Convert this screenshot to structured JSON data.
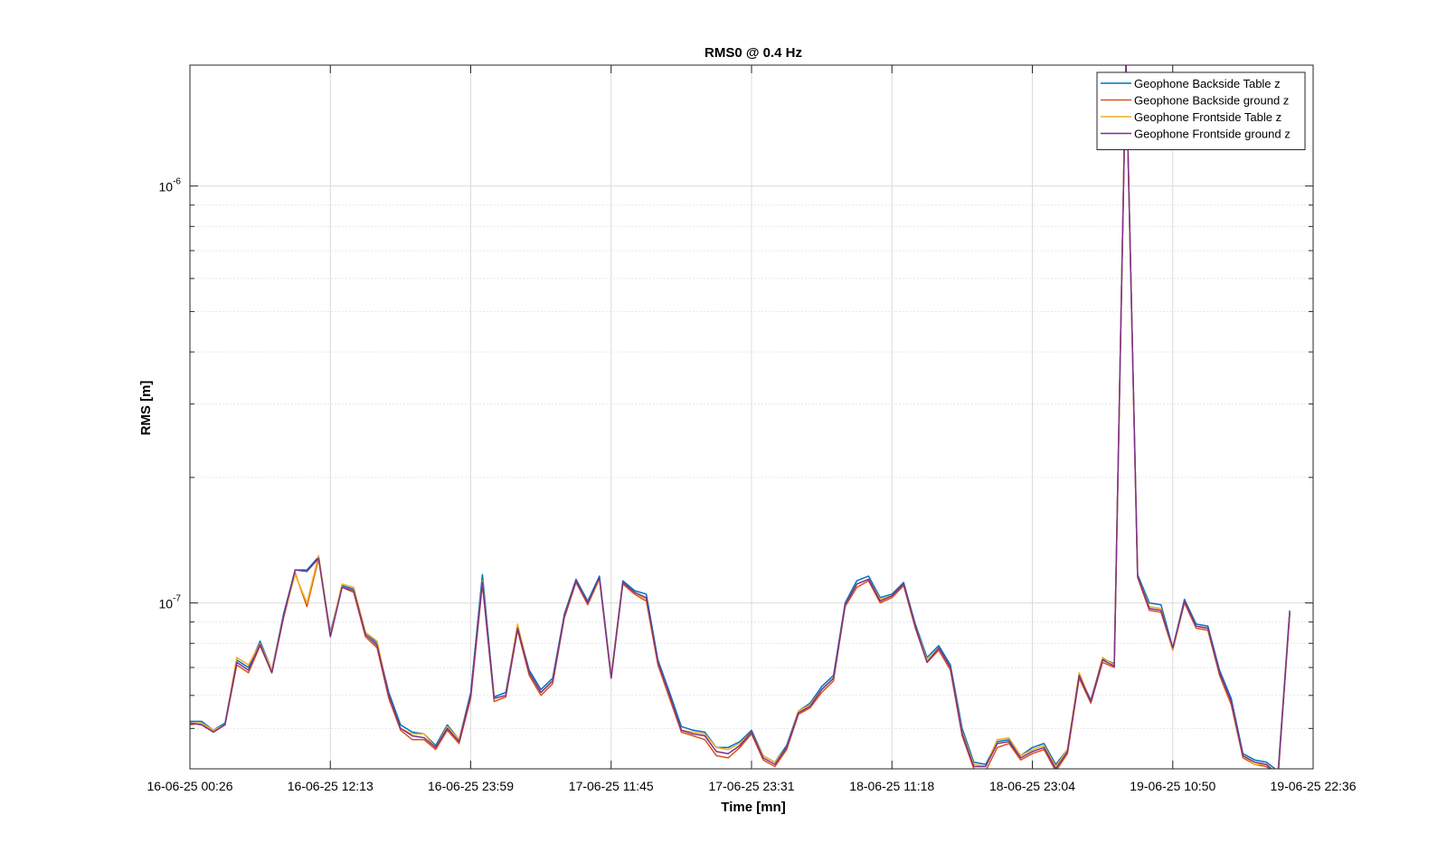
{
  "chart_data": {
    "type": "line",
    "title": "RMS0 @ 0.4 Hz",
    "xlabel": "Time [mn]",
    "ylabel": "RMS [m]",
    "yscale": "log",
    "ylim": [
      4e-08,
      1.95e-06
    ],
    "y_ticks": [
      1e-07,
      1e-06
    ],
    "y_tick_labels": [
      {
        "base": "10",
        "exp": "-7"
      },
      {
        "base": "10",
        "exp": "-6"
      }
    ],
    "x_tick_labels": [
      "16-06-25 00:26",
      "16-06-25 12:13",
      "16-06-25 23:59",
      "17-06-25 11:45",
      "17-06-25 23:31",
      "18-06-25 11:18",
      "18-06-25 23:04",
      "19-06-25 10:50",
      "19-06-25 22:36"
    ],
    "grid": true,
    "legend_position": "top-right",
    "x_index": [
      0,
      1,
      2,
      3,
      4,
      5,
      6,
      7,
      8,
      9,
      10,
      11,
      12,
      13,
      14,
      15,
      16,
      17,
      18,
      19,
      20,
      21,
      22,
      23,
      24,
      25,
      26,
      27,
      28,
      29,
      30,
      31,
      32,
      33,
      34,
      35,
      36,
      37,
      38,
      39,
      40,
      41,
      42,
      43,
      44,
      45,
      46,
      47,
      48,
      49,
      50,
      51,
      52,
      53,
      54,
      55,
      56,
      57,
      58,
      59,
      60,
      61,
      62,
      63,
      64,
      65,
      66,
      67,
      68,
      69,
      70,
      71,
      72,
      73,
      74,
      75,
      76,
      77,
      78,
      79,
      80,
      81,
      82,
      83,
      84,
      85,
      86,
      87,
      88,
      89,
      90,
      91,
      92,
      93,
      94,
      95,
      96
    ],
    "series": [
      {
        "name": "Geophone Backside Table z",
        "color": "#0072BD",
        "values": [
          5.2e-08,
          5.2e-08,
          4.95e-08,
          5.15e-08,
          7.3e-08,
          7e-08,
          8.1e-08,
          6.9e-08,
          9.4e-08,
          1.2e-07,
          1.2e-07,
          1.29e-07,
          8.5e-08,
          1.1e-07,
          1.08e-07,
          8.5e-08,
          8e-08,
          6.1e-08,
          5.1e-08,
          4.9e-08,
          4.85e-08,
          4.55e-08,
          5.1e-08,
          4.7e-08,
          6.1e-08,
          1.17e-07,
          5.95e-08,
          6.1e-08,
          8.8e-08,
          6.9e-08,
          6.2e-08,
          6.6e-08,
          9.4e-08,
          1.14e-07,
          1.01e-07,
          1.16e-07,
          6.7e-08,
          1.13e-07,
          1.07e-07,
          1.05e-07,
          7.3e-08,
          6.1e-08,
          5.05e-08,
          4.95e-08,
          4.9e-08,
          4.5e-08,
          4.5e-08,
          4.65e-08,
          4.95e-08,
          4.3e-08,
          4.15e-08,
          4.55e-08,
          5.5e-08,
          5.75e-08,
          6.3e-08,
          6.7e-08,
          1e-07,
          1.13e-07,
          1.16e-07,
          1.03e-07,
          1.05e-07,
          1.12e-07,
          8.9e-08,
          7.4e-08,
          7.9e-08,
          7.1e-08,
          5e-08,
          4.15e-08,
          4.1e-08,
          4.65e-08,
          4.7e-08,
          4.3e-08,
          4.5e-08,
          4.6e-08,
          4.1e-08,
          4.45e-08,
          6.7e-08,
          5.85e-08,
          7.35e-08,
          7.15e-08,
          2e-06,
          1.17e-07,
          1e-07,
          9.9e-08,
          7.8e-08,
          1.02e-07,
          8.9e-08,
          8.8e-08,
          6.9e-08,
          5.9e-08,
          4.35e-08,
          4.2e-08,
          4.15e-08,
          3.95e-08,
          9.6e-08
        ]
      },
      {
        "name": "Geophone Backside ground z",
        "color": "#D95319",
        "values": [
          5.1e-08,
          5.15e-08,
          4.9e-08,
          5.1e-08,
          7.1e-08,
          6.8e-08,
          7.9e-08,
          6.8e-08,
          9.2e-08,
          1.18e-07,
          9.8e-08,
          1.28e-07,
          8.3e-08,
          1.09e-07,
          1.06e-07,
          8.3e-08,
          7.8e-08,
          5.9e-08,
          4.95e-08,
          4.7e-08,
          4.7e-08,
          4.45e-08,
          4.95e-08,
          4.6e-08,
          5.9e-08,
          1.11e-07,
          5.8e-08,
          5.95e-08,
          8.6e-08,
          6.7e-08,
          6e-08,
          6.4e-08,
          9.2e-08,
          1.12e-07,
          9.9e-08,
          1.14e-07,
          6.6e-08,
          1.11e-07,
          1.05e-07,
          1.01e-07,
          7.1e-08,
          5.9e-08,
          4.9e-08,
          4.8e-08,
          4.7e-08,
          4.3e-08,
          4.25e-08,
          4.5e-08,
          4.85e-08,
          4.2e-08,
          4.05e-08,
          4.45e-08,
          5.4e-08,
          5.6e-08,
          6.1e-08,
          6.5e-08,
          9.8e-08,
          1.09e-07,
          1.13e-07,
          1e-07,
          1.03e-07,
          1.1e-07,
          8.7e-08,
          7.2e-08,
          7.7e-08,
          6.9e-08,
          4.8e-08,
          4e-08,
          3.95e-08,
          4.5e-08,
          4.6e-08,
          4.2e-08,
          4.35e-08,
          4.45e-08,
          3.95e-08,
          4.35e-08,
          6.6e-08,
          5.75e-08,
          7.2e-08,
          7e-08,
          2e-06,
          1.15e-07,
          9.6e-08,
          9.5e-08,
          7.7e-08,
          1e-07,
          8.7e-08,
          8.6e-08,
          6.7e-08,
          5.7e-08,
          4.25e-08,
          4.1e-08,
          4.05e-08,
          3.85e-08,
          9.4e-08
        ]
      },
      {
        "name": "Geophone Frontside Table z",
        "color": "#EDB120",
        "values": [
          5.15e-08,
          5.15e-08,
          4.95e-08,
          5.1e-08,
          7.4e-08,
          7.1e-08,
          8e-08,
          6.9e-08,
          9.3e-08,
          1.17e-07,
          1e-07,
          1.3e-07,
          8.4e-08,
          1.11e-07,
          1.09e-07,
          8.5e-08,
          8.1e-08,
          6e-08,
          5e-08,
          4.85e-08,
          4.85e-08,
          4.5e-08,
          5.05e-08,
          4.7e-08,
          6e-08,
          1.13e-07,
          5.9e-08,
          6e-08,
          8.9e-08,
          6.8e-08,
          6.1e-08,
          6.5e-08,
          9.3e-08,
          1.13e-07,
          1e-07,
          1.14e-07,
          6.7e-08,
          1.12e-07,
          1.06e-07,
          1.02e-07,
          7.2e-08,
          6e-08,
          4.95e-08,
          4.9e-08,
          4.85e-08,
          4.5e-08,
          4.45e-08,
          4.6e-08,
          4.9e-08,
          4.3e-08,
          4.15e-08,
          4.5e-08,
          5.5e-08,
          5.7e-08,
          6.2e-08,
          6.6e-08,
          9.9e-08,
          1.11e-07,
          1.14e-07,
          1.02e-07,
          1.04e-07,
          1.11e-07,
          8.8e-08,
          7.3e-08,
          7.8e-08,
          7e-08,
          4.9e-08,
          4.1e-08,
          4.05e-08,
          4.7e-08,
          4.75e-08,
          4.3e-08,
          4.45e-08,
          4.55e-08,
          4.05e-08,
          4.45e-08,
          6.8e-08,
          5.8e-08,
          7.4e-08,
          7.1e-08,
          2e-06,
          1.16e-07,
          9.8e-08,
          9.7e-08,
          7.7e-08,
          1.01e-07,
          8.8e-08,
          8.7e-08,
          6.8e-08,
          5.8e-08,
          4.3e-08,
          4.1e-08,
          4.1e-08,
          3.9e-08,
          9.5e-08
        ]
      },
      {
        "name": "Geophone Frontside ground z",
        "color": "#7E2F8E",
        "values": [
          5.15e-08,
          5.1e-08,
          4.9e-08,
          5.1e-08,
          7.2e-08,
          6.9e-08,
          7.95e-08,
          6.8e-08,
          9.3e-08,
          1.2e-07,
          1.19e-07,
          1.28e-07,
          8.3e-08,
          1.09e-07,
          1.07e-07,
          8.4e-08,
          7.9e-08,
          6e-08,
          5e-08,
          4.8e-08,
          4.75e-08,
          4.5e-08,
          5e-08,
          4.65e-08,
          6e-08,
          1.12e-07,
          5.9e-08,
          6e-08,
          8.7e-08,
          6.8e-08,
          6.1e-08,
          6.5e-08,
          9.3e-08,
          1.13e-07,
          1e-07,
          1.15e-07,
          6.6e-08,
          1.12e-07,
          1.06e-07,
          1.03e-07,
          7.2e-08,
          6e-08,
          4.95e-08,
          4.85e-08,
          4.8e-08,
          4.4e-08,
          4.35e-08,
          4.55e-08,
          4.9e-08,
          4.25e-08,
          4.1e-08,
          4.5e-08,
          5.45e-08,
          5.65e-08,
          6.2e-08,
          6.6e-08,
          9.9e-08,
          1.11e-07,
          1.14e-07,
          1.01e-07,
          1.04e-07,
          1.11e-07,
          8.8e-08,
          7.2e-08,
          7.8e-08,
          7e-08,
          4.85e-08,
          4.05e-08,
          4.05e-08,
          4.6e-08,
          4.65e-08,
          4.25e-08,
          4.4e-08,
          4.5e-08,
          4e-08,
          4.4e-08,
          6.7e-08,
          5.8e-08,
          7.3e-08,
          7.05e-08,
          2e-06,
          1.16e-07,
          9.7e-08,
          9.6e-08,
          7.8e-08,
          1.01e-07,
          8.8e-08,
          8.7e-08,
          6.8e-08,
          5.8e-08,
          4.3e-08,
          4.15e-08,
          4.1e-08,
          3.85e-08,
          9.5e-08
        ]
      }
    ]
  }
}
